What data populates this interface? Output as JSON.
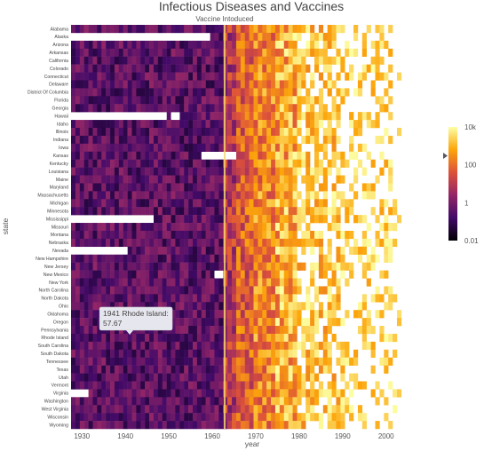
{
  "chart_data": {
    "type": "heatmap",
    "title": "Infectious Diseases and Vaccines",
    "xlabel": "year",
    "ylabel": "state",
    "x_range": [
      1928,
      2011
    ],
    "x_ticks": [
      1930,
      1940,
      1950,
      1960,
      1970,
      1980,
      1990,
      2000
    ],
    "vaccine_introduced_year": 1963,
    "vaccine_annotation": "Vaccine Intoduced",
    "colorscale": [
      "#000004",
      "#420a68",
      "#932667",
      "#dd513a",
      "#fca50a",
      "#fcffa4"
    ],
    "colorbar": {
      "scale": "log",
      "ticks": [
        {
          "value": 10000,
          "label": "10k"
        },
        {
          "value": 100,
          "label": "100"
        },
        {
          "value": 1,
          "label": "1"
        },
        {
          "value": 0.01,
          "label": "0.01"
        }
      ],
      "marker_value": 300
    },
    "states": [
      "Alabama",
      "Alaska",
      "Arizona",
      "Arkansas",
      "California",
      "Colorado",
      "Connecticut",
      "Delaware",
      "District Of Columbia",
      "Florida",
      "Georgia",
      "Hawaii",
      "Idaho",
      "Illinois",
      "Indiana",
      "Iowa",
      "Kansas",
      "Kentucky",
      "Louisiana",
      "Maine",
      "Maryland",
      "Massachusetts",
      "Michigan",
      "Minnesota",
      "Mississippi",
      "Missouri",
      "Montana",
      "Nebraska",
      "Nevada",
      "New Hampshire",
      "New Jersey",
      "New Mexico",
      "New York",
      "North Carolina",
      "North Dakota",
      "Ohio",
      "Oklahoma",
      "Oregon",
      "Pennsylvania",
      "Rhode Island",
      "South Carolina",
      "South Dakota",
      "Tennessee",
      "Texas",
      "Utah",
      "Vermont",
      "Virginia",
      "Washington",
      "West Virginia",
      "Wisconsin",
      "Wyoming"
    ],
    "missing_ranges": [
      {
        "state": "Alaska",
        "from": 1928,
        "to": 1959
      },
      {
        "state": "Hawaii",
        "from": 1928,
        "to": 1949
      },
      {
        "state": "Hawaii",
        "from": 1951,
        "to": 1952
      },
      {
        "state": "Kansas",
        "from": 1958,
        "to": 1965
      },
      {
        "state": "Mississippi",
        "from": 1928,
        "to": 1946
      },
      {
        "state": "Nevada",
        "from": 1928,
        "to": 1940
      },
      {
        "state": "New Mexico",
        "from": 1961,
        "to": 1962
      },
      {
        "state": "Virginia",
        "from": 1928,
        "to": 1931
      }
    ],
    "hover": {
      "year": 1941,
      "state": "Rhode Island",
      "value": 57.67,
      "text": "1941 Rhode Island:",
      "value_text": "57.67"
    }
  }
}
